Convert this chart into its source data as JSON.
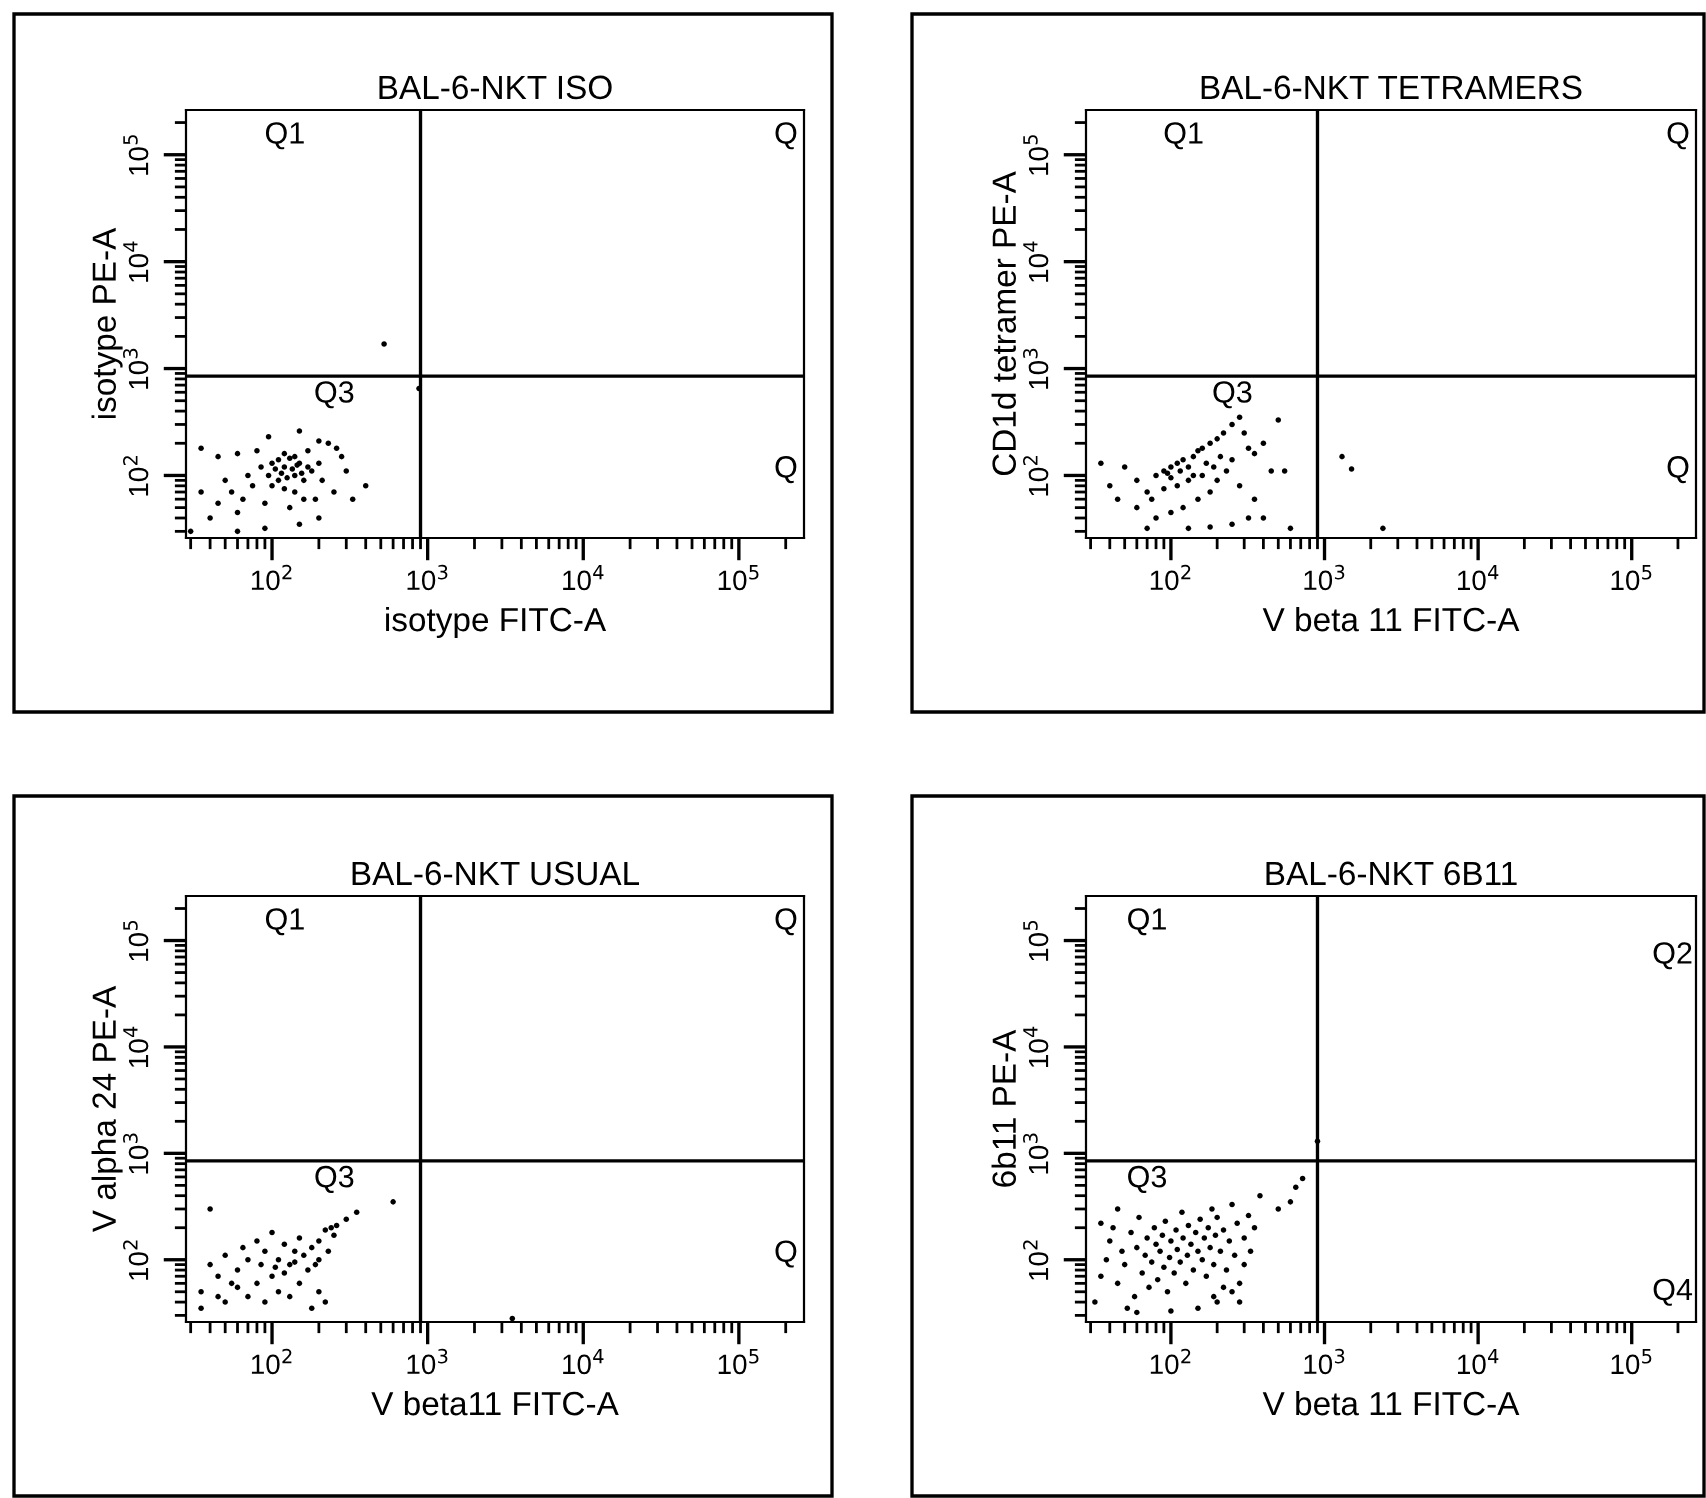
{
  "chart_data": [
    {
      "type": "scatter",
      "title": "BAL-6-NKT ISO",
      "xlabel": "isotype FITC-A",
      "ylabel": "isotype PE-A",
      "log": "xy",
      "grid": false,
      "xlim": [
        28,
        262144
      ],
      "ylim": [
        26,
        262144
      ],
      "xticks": [
        {
          "value": 100,
          "label": "10$^{2}$"
        },
        {
          "value": 1000,
          "label": "10$^{3}$"
        },
        {
          "value": 10000,
          "label": "10$^{4}$"
        },
        {
          "value": 100000,
          "label": "10$^{5}$"
        }
      ],
      "yticks": [
        {
          "value": 100,
          "label": "10$^{2}$"
        },
        {
          "value": 1000,
          "label": "10$^{3}$"
        },
        {
          "value": 10000,
          "label": "10$^{4}$"
        },
        {
          "value": 100000,
          "label": "10$^{5}$"
        }
      ],
      "ref_lines": [
        {
          "axis": "x",
          "value": 900,
          "color": "#000000"
        },
        {
          "axis": "y",
          "value": 850,
          "color": "#000000"
        }
      ],
      "annotations": [
        "Q1",
        "Q",
        "Q3",
        "Q"
      ],
      "series": [
        {
          "color": "#000000",
          "x": [
            35,
            45,
            60,
            80,
            95,
            150,
            200,
            230,
            260,
            280,
            300,
            250,
            190,
            130,
            90,
            60,
            40,
            35,
            50,
            70,
            85,
            100,
            110,
            120,
            130,
            140,
            150,
            160,
            170,
            180,
            110,
            100,
            95,
            120,
            140,
            160,
            75,
            65,
            55,
            45,
            400,
            330,
            210,
            200,
            120,
            170,
            140,
            30,
            60,
            90,
            150,
            200,
            525,
            880,
            115,
            125,
            135,
            105,
            145,
            155
          ],
          "values": [
            180,
            150,
            160,
            170,
            230,
            260,
            210,
            200,
            180,
            150,
            110,
            70,
            60,
            50,
            55,
            45,
            40,
            70,
            90,
            100,
            120,
            130,
            140,
            120,
            145,
            100,
            130,
            90,
            120,
            110,
            90,
            80,
            100,
            75,
            70,
            60,
            80,
            60,
            70,
            55,
            80,
            60,
            90,
            130,
            160,
            170,
            150,
            30,
            30,
            32,
            35,
            40,
            1700,
            650,
            105,
            95,
            115,
            115,
            125,
            105
          ]
        }
      ]
    },
    {
      "type": "scatter",
      "title": "BAL-6-NKT TETRAMERS",
      "xlabel": "V beta 11 FITC-A",
      "ylabel": "CD1d tetramer PE-A",
      "log": "xy",
      "grid": false,
      "xlim": [
        28,
        262144
      ],
      "ylim": [
        26,
        262144
      ],
      "xticks": [
        {
          "value": 100,
          "label": "10$^{2}$"
        },
        {
          "value": 1000,
          "label": "10$^{3}$"
        },
        {
          "value": 10000,
          "label": "10$^{4}$"
        },
        {
          "value": 100000,
          "label": "10$^{5}$"
        }
      ],
      "yticks": [
        {
          "value": 100,
          "label": "10$^{2}$"
        },
        {
          "value": 1000,
          "label": "10$^{3}$"
        },
        {
          "value": 10000,
          "label": "10$^{4}$"
        },
        {
          "value": 100000,
          "label": "10$^{5}$"
        }
      ],
      "ref_lines": [
        {
          "axis": "x",
          "value": 900,
          "color": "#000000"
        },
        {
          "axis": "y",
          "value": 850,
          "color": "#000000"
        }
      ],
      "annotations": [
        "Q1",
        "Q",
        "Q3",
        "Q"
      ],
      "series": [
        {
          "color": "#000000",
          "x": [
            35,
            50,
            60,
            70,
            80,
            90,
            100,
            110,
            120,
            130,
            140,
            150,
            160,
            180,
            200,
            220,
            250,
            280,
            300,
            320,
            350,
            400,
            500,
            550,
            450,
            250,
            230,
            200,
            180,
            150,
            120,
            100,
            80,
            60,
            45,
            40,
            110,
            130,
            160,
            190,
            210,
            170,
            140,
            100,
            90,
            75,
            280,
            350,
            320,
            250,
            180,
            130,
            70,
            1300,
            1500,
            2400,
            400,
            600,
            95,
            115
          ],
          "values": [
            130,
            120,
            90,
            70,
            100,
            110,
            120,
            130,
            140,
            120,
            150,
            170,
            180,
            200,
            220,
            250,
            300,
            350,
            250,
            180,
            160,
            200,
            330,
            110,
            110,
            140,
            110,
            90,
            70,
            60,
            50,
            45,
            40,
            50,
            60,
            80,
            80,
            90,
            100,
            120,
            150,
            130,
            100,
            95,
            75,
            60,
            80,
            60,
            40,
            35,
            33,
            32,
            32,
            150,
            115,
            32,
            40,
            32,
            105,
            110
          ]
        }
      ]
    },
    {
      "type": "scatter",
      "title": "BAL-6-NKT USUAL",
      "xlabel": "V beta11 FITC-A",
      "ylabel": "V alpha 24 PE-A",
      "log": "xy",
      "grid": false,
      "xlim": [
        28,
        262144
      ],
      "ylim": [
        26,
        262144
      ],
      "xticks": [
        {
          "value": 100,
          "label": "10$^{2}$"
        },
        {
          "value": 1000,
          "label": "10$^{3}$"
        },
        {
          "value": 10000,
          "label": "10$^{4}$"
        },
        {
          "value": 100000,
          "label": "10$^{5}$"
        }
      ],
      "yticks": [
        {
          "value": 100,
          "label": "10$^{2}$"
        },
        {
          "value": 1000,
          "label": "10$^{3}$"
        },
        {
          "value": 10000,
          "label": "10$^{4}$"
        },
        {
          "value": 100000,
          "label": "10$^{5}$"
        }
      ],
      "ref_lines": [
        {
          "axis": "x",
          "value": 900,
          "color": "#000000"
        },
        {
          "axis": "y",
          "value": 850,
          "color": "#000000"
        }
      ],
      "annotations": [
        "Q1",
        "Q",
        "Q3",
        "Q"
      ],
      "series": [
        {
          "color": "#000000",
          "x": [
            35,
            40,
            45,
            50,
            55,
            60,
            65,
            70,
            80,
            90,
            100,
            110,
            120,
            130,
            140,
            150,
            160,
            170,
            180,
            200,
            220,
            240,
            260,
            300,
            350,
            600,
            150,
            130,
            110,
            90,
            70,
            50,
            35,
            200,
            220,
            180,
            100,
            120,
            140,
            80,
            60,
            45,
            200,
            230,
            190,
            250,
            85,
            105,
            3500,
            40
          ],
          "values": [
            50,
            90,
            70,
            110,
            60,
            80,
            130,
            100,
            150,
            120,
            180,
            100,
            140,
            90,
            120,
            160,
            110,
            80,
            130,
            150,
            190,
            200,
            210,
            240,
            280,
            350,
            60,
            45,
            50,
            40,
            45,
            40,
            35,
            50,
            40,
            35,
            70,
            75,
            95,
            60,
            55,
            45,
            100,
            120,
            90,
            170,
            90,
            85,
            28,
            300
          ]
        }
      ]
    },
    {
      "type": "scatter",
      "title": "BAL-6-NKT 6B11",
      "xlabel": "V beta 11 FITC-A",
      "ylabel": "6b11 PE-A",
      "log": "xy",
      "grid": false,
      "xlim": [
        28,
        262144
      ],
      "ylim": [
        26,
        262144
      ],
      "xticks": [
        {
          "value": 100,
          "label": "10$^{2}$"
        },
        {
          "value": 1000,
          "label": "10$^{3}$"
        },
        {
          "value": 10000,
          "label": "10$^{4}$"
        },
        {
          "value": 100000,
          "label": "10$^{5}$"
        }
      ],
      "yticks": [
        {
          "value": 100,
          "label": "10$^{2}$"
        },
        {
          "value": 1000,
          "label": "10$^{3}$"
        },
        {
          "value": 10000,
          "label": "10$^{4}$"
        },
        {
          "value": 100000,
          "label": "10$^{5}$"
        }
      ],
      "ref_lines": [
        {
          "axis": "x",
          "value": 900,
          "color": "#000000"
        },
        {
          "axis": "y",
          "value": 850,
          "color": "#000000"
        }
      ],
      "annotations": [
        "Q1",
        "Q2",
        "Q3",
        "Q4"
      ],
      "series": [
        {
          "color": "#000000",
          "x": [
            32,
            35,
            38,
            40,
            42,
            45,
            48,
            50,
            55,
            58,
            60,
            62,
            65,
            68,
            70,
            72,
            75,
            78,
            80,
            82,
            85,
            88,
            90,
            92,
            95,
            98,
            100,
            105,
            108,
            110,
            115,
            118,
            120,
            125,
            128,
            130,
            135,
            140,
            145,
            150,
            155,
            160,
            165,
            170,
            175,
            180,
            185,
            190,
            195,
            200,
            210,
            220,
            230,
            240,
            250,
            260,
            270,
            280,
            300,
            320,
            350,
            380,
            300,
            250,
            200,
            150,
            100,
            60,
            280,
            220,
            650,
            720,
            600,
            500,
            900,
            45,
            35,
            52,
            190,
            330
          ],
          "values": [
            40,
            70,
            100,
            150,
            200,
            60,
            120,
            90,
            180,
            45,
            130,
            250,
            75,
            110,
            160,
            55,
            95,
            200,
            140,
            65,
            120,
            170,
            85,
            230,
            50,
            105,
            150,
            75,
            190,
            125,
            95,
            280,
            160,
            60,
            110,
            210,
            140,
            80,
            180,
            120,
            240,
            100,
            160,
            70,
            200,
            130,
            300,
            90,
            170,
            250,
            120,
            190,
            80,
            150,
            330,
            110,
            220,
            60,
            160,
            260,
            200,
            400,
            90,
            50,
            40,
            35,
            33,
            32,
            40,
            55,
            480,
            580,
            350,
            300,
            1300,
            300,
            220,
            35,
            45,
            120
          ]
        }
      ]
    }
  ]
}
